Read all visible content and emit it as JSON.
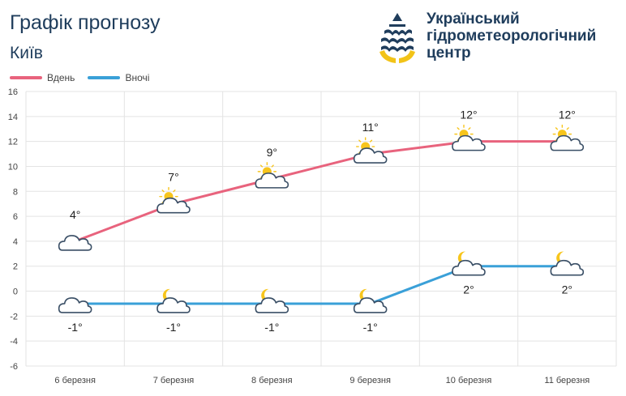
{
  "header": {
    "title": "Графік прогнозу",
    "subtitle": "Київ"
  },
  "logo": {
    "line1": "Український",
    "line2": "гідрометеорологічний",
    "line3": "центр",
    "icon": "drop-wave-icon"
  },
  "colors": {
    "day": "#e8637d",
    "night": "#3aa0d8",
    "grid": "#e3e3e3",
    "text": "#1f3d5c"
  },
  "chart_data": {
    "type": "line",
    "categories": [
      "6 березня",
      "7 березня",
      "8 березня",
      "9 березня",
      "10 березня",
      "11 березня"
    ],
    "ylim": [
      -6,
      16
    ],
    "yticks": [
      -6,
      -4,
      -2,
      0,
      2,
      4,
      6,
      8,
      10,
      12,
      14,
      16
    ],
    "ytick_labels": [
      "-6",
      "-4",
      "-2",
      "0",
      "2",
      "4",
      "6",
      "8",
      "10",
      "12",
      "14",
      "16"
    ],
    "grid": true,
    "legend_position": "top-left",
    "series": [
      {
        "name": "Вдень",
        "key": "day",
        "values": [
          4,
          7,
          9,
          11,
          12,
          12
        ],
        "labels": [
          "4°",
          "7°",
          "9°",
          "11°",
          "12°",
          "12°"
        ],
        "icons": [
          "cloud-icon",
          "sun-cloud-icon",
          "sun-cloud-icon",
          "sun-cloud-icon",
          "sun-cloud-icon",
          "sun-cloud-icon"
        ]
      },
      {
        "name": "Вночі",
        "key": "night",
        "values": [
          -1,
          -1,
          -1,
          -1,
          2,
          2
        ],
        "labels": [
          "-1°",
          "-1°",
          "-1°",
          "-1°",
          "2°",
          "2°"
        ],
        "icons": [
          "cloud-icon",
          "moon-cloud-icon",
          "moon-cloud-icon",
          "moon-cloud-icon",
          "moon-cloud-icon",
          "moon-cloud-icon"
        ]
      }
    ]
  }
}
